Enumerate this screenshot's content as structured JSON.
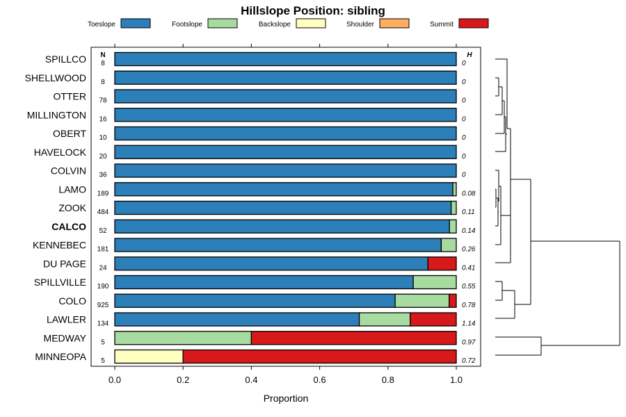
{
  "chart_data": {
    "type": "bar",
    "stacked": true,
    "orientation": "horizontal",
    "title": "Hillslope Position: sibling",
    "xlabel": "Proportion",
    "xlim": [
      0,
      1
    ],
    "xticks": [
      "0.0",
      "0.2",
      "0.4",
      "0.6",
      "0.8",
      "1.0"
    ],
    "n_header": "N",
    "h_header": "H",
    "highlight": "CALCO",
    "legend": [
      {
        "name": "Toeslope",
        "color": "#2c7fb8"
      },
      {
        "name": "Footslope",
        "color": "#a8dba0"
      },
      {
        "name": "Backslope",
        "color": "#ffffc0"
      },
      {
        "name": "Shoulder",
        "color": "#fdae61"
      },
      {
        "name": "Summit",
        "color": "#d7191c"
      }
    ],
    "rows": [
      {
        "label": "SPILLCO",
        "n": "8",
        "h": "0",
        "values": [
          1,
          0,
          0,
          0,
          0
        ]
      },
      {
        "label": "SHELLWOOD",
        "n": "8",
        "h": "0",
        "values": [
          1,
          0,
          0,
          0,
          0
        ]
      },
      {
        "label": "OTTER",
        "n": "78",
        "h": "0",
        "values": [
          1,
          0,
          0,
          0,
          0
        ]
      },
      {
        "label": "MILLINGTON",
        "n": "16",
        "h": "0",
        "values": [
          1,
          0,
          0,
          0,
          0
        ]
      },
      {
        "label": "OBERT",
        "n": "10",
        "h": "0",
        "values": [
          1,
          0,
          0,
          0,
          0
        ]
      },
      {
        "label": "HAVELOCK",
        "n": "20",
        "h": "0",
        "values": [
          1,
          0,
          0,
          0,
          0
        ]
      },
      {
        "label": "COLVIN",
        "n": "36",
        "h": "0",
        "values": [
          1,
          0,
          0,
          0,
          0
        ]
      },
      {
        "label": "LAMO",
        "n": "189",
        "h": "0.08",
        "values": [
          0.99,
          0.01,
          0,
          0,
          0
        ]
      },
      {
        "label": "ZOOK",
        "n": "484",
        "h": "0.11",
        "values": [
          0.985,
          0.015,
          0,
          0,
          0
        ]
      },
      {
        "label": "CALCO",
        "n": "52",
        "h": "0.14",
        "values": [
          0.98,
          0.02,
          0,
          0,
          0
        ]
      },
      {
        "label": "KENNEBEC",
        "n": "181",
        "h": "0.26",
        "values": [
          0.956,
          0.044,
          0,
          0,
          0
        ]
      },
      {
        "label": "DU PAGE",
        "n": "24",
        "h": "0.41",
        "values": [
          0.917,
          0,
          0,
          0,
          0.083
        ]
      },
      {
        "label": "SPILLVILLE",
        "n": "190",
        "h": "0.55",
        "values": [
          0.874,
          0.126,
          0,
          0,
          0
        ]
      },
      {
        "label": "COLO",
        "n": "925",
        "h": "0.78",
        "values": [
          0.821,
          0.158,
          0,
          0,
          0.021
        ]
      },
      {
        "label": "LAWLER",
        "n": "134",
        "h": "1.14",
        "values": [
          0.716,
          0.149,
          0,
          0,
          0.135
        ]
      },
      {
        "label": "MEDWAY",
        "n": "5",
        "h": "0.97",
        "values": [
          0,
          0.4,
          0,
          0,
          0.6
        ]
      },
      {
        "label": "MINNEOPA",
        "n": "5",
        "h": "0.72",
        "values": [
          0,
          0,
          0.2,
          0,
          0.8
        ]
      }
    ]
  }
}
